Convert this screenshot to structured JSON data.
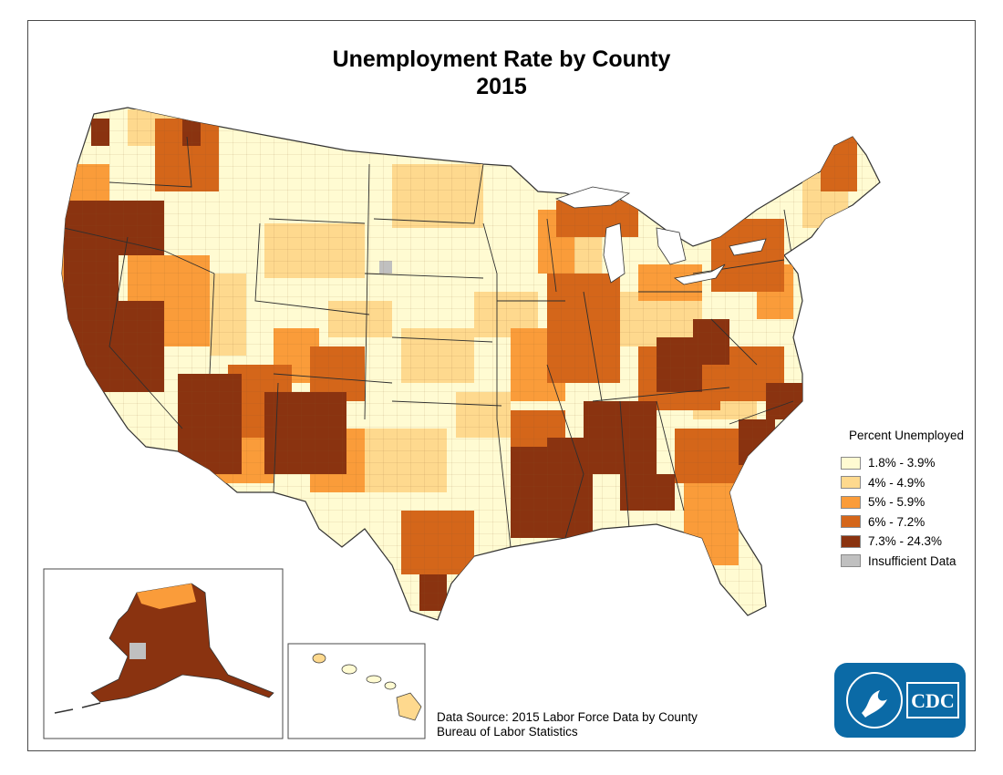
{
  "title": {
    "line1": "Unemployment Rate by County",
    "line2": "2015"
  },
  "legend": {
    "title": "Percent Unemployed",
    "items": [
      {
        "label": "1.8% - 3.9%",
        "color": "#fffbd2"
      },
      {
        "label": "4% - 4.9%",
        "color": "#fed98e"
      },
      {
        "label": "5% - 5.9%",
        "color": "#fa9c3a"
      },
      {
        "label": "6% - 7.2%",
        "color": "#d4661a"
      },
      {
        "label": "7.3% - 24.3%",
        "color": "#8a3310"
      },
      {
        "label": "Insufficient Data",
        "color": "#c0c0c0"
      }
    ]
  },
  "source": {
    "line1": "Data Source: 2015 Labor Force Data by County",
    "line2": "Bureau of Labor Statistics"
  },
  "logo": {
    "text": "CDC",
    "color": "#0b6aa6"
  },
  "insets": [
    "Alaska",
    "Hawaii"
  ]
}
